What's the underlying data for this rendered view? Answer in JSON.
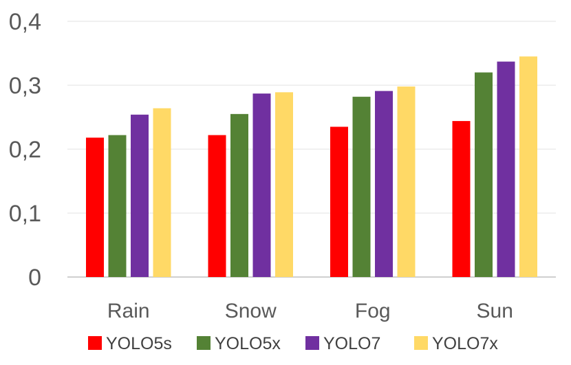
{
  "chart_data": {
    "type": "bar",
    "categories": [
      "Rain",
      "Snow",
      "Fog",
      "Sun"
    ],
    "series": [
      {
        "name": "YOLO5s",
        "color": "#ff0000",
        "values": [
          0.218,
          0.222,
          0.235,
          0.244
        ]
      },
      {
        "name": "YOLO5x",
        "color": "#548235",
        "values": [
          0.222,
          0.255,
          0.282,
          0.32
        ]
      },
      {
        "name": "YOLO7",
        "color": "#7030a0",
        "values": [
          0.254,
          0.287,
          0.291,
          0.337
        ]
      },
      {
        "name": "YOLO7x",
        "color": "#ffd966",
        "values": [
          0.264,
          0.289,
          0.298,
          0.345
        ]
      }
    ],
    "yticks": [
      "0",
      "0,1",
      "0,2",
      "0,3",
      "0,4"
    ],
    "ylim": [
      0,
      0.4
    ],
    "grid": true,
    "legend_position": "bottom"
  }
}
